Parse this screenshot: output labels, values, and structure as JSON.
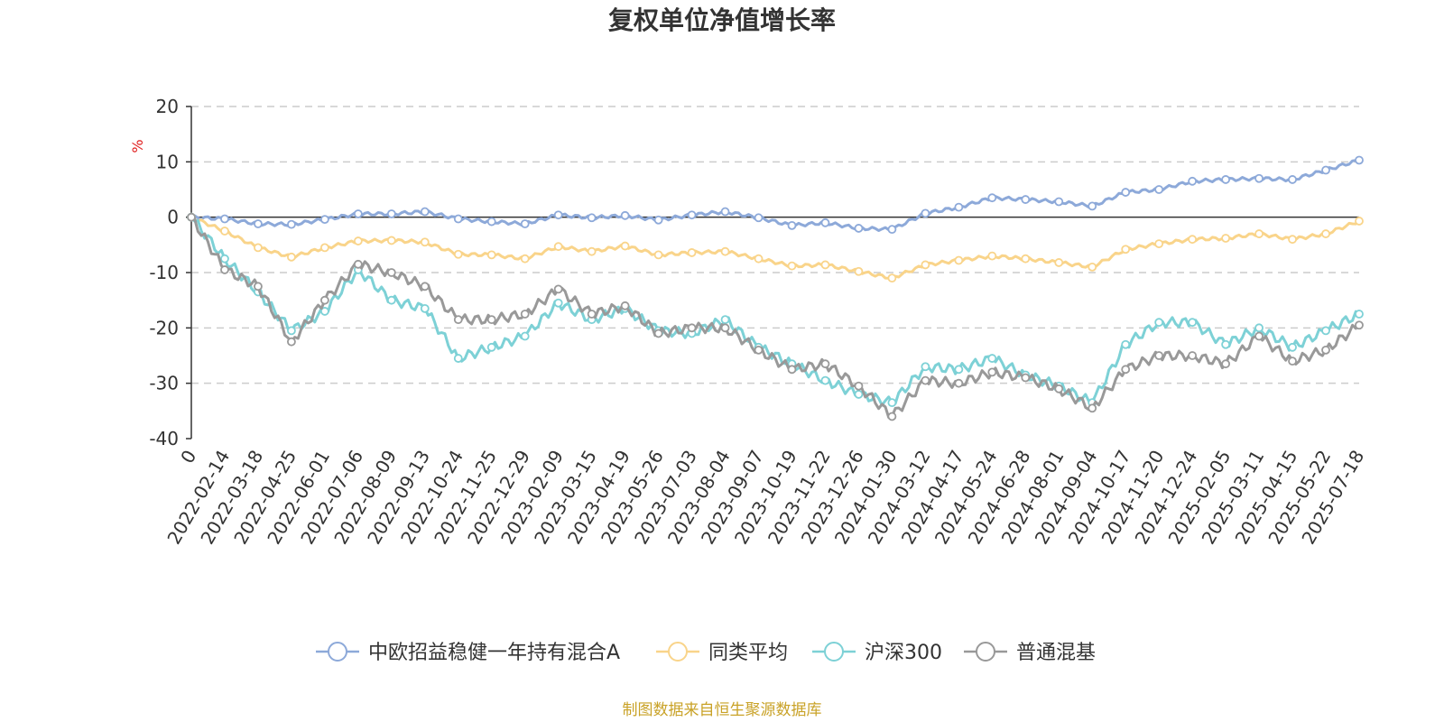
{
  "chart_data": {
    "type": "line",
    "title": "复权单位净值增长率",
    "ylabel": "%",
    "ylim": [
      -40,
      20
    ],
    "yticks": [
      20,
      10,
      0,
      -10,
      -20,
      -30,
      -40
    ],
    "grid": true,
    "legend_position": "bottom",
    "source_note": "制图数据来自恒生聚源数据库",
    "x": [
      "0",
      "2022-02-14",
      "2022-03-18",
      "2022-04-25",
      "2022-06-01",
      "2022-07-06",
      "2022-08-09",
      "2022-09-13",
      "2022-10-24",
      "2022-11-25",
      "2022-12-29",
      "2023-02-09",
      "2023-03-15",
      "2023-04-19",
      "2023-05-26",
      "2023-07-03",
      "2023-08-04",
      "2023-09-07",
      "2023-10-19",
      "2023-11-22",
      "2023-12-26",
      "2024-01-30",
      "2024-03-12",
      "2024-04-17",
      "2024-05-24",
      "2024-06-28",
      "2024-08-01",
      "2024-09-04",
      "2024-10-17",
      "2024-11-20",
      "2024-12-24",
      "2025-02-05",
      "2025-03-11",
      "2025-04-15",
      "2025-05-22",
      "2025-07-18"
    ],
    "series": [
      {
        "name": "中欧招益稳健一年持有混合A",
        "color": "#8da9d9",
        "values": [
          0,
          -0.3,
          -1.2,
          -1.3,
          -0.4,
          0.6,
          0.6,
          1.0,
          -0.3,
          -0.8,
          -1.2,
          0.4,
          -0.1,
          0.3,
          -0.5,
          0.4,
          1.0,
          -0.1,
          -1.5,
          -1.0,
          -2.0,
          -2.2,
          0.7,
          1.8,
          3.5,
          3.2,
          2.8,
          2.0,
          4.5,
          5.0,
          6.5,
          6.8,
          7.0,
          6.8,
          8.5,
          10.3
        ]
      },
      {
        "name": "同类平均",
        "color": "#f9d48a",
        "values": [
          0,
          -2.5,
          -5.5,
          -7.2,
          -5.5,
          -4.3,
          -4.2,
          -4.5,
          -6.7,
          -6.8,
          -7.5,
          -5.3,
          -6.2,
          -5.2,
          -6.8,
          -6.4,
          -6.2,
          -7.5,
          -8.8,
          -8.6,
          -9.8,
          -11.0,
          -8.6,
          -7.8,
          -7.0,
          -7.5,
          -8.2,
          -9.0,
          -5.8,
          -4.8,
          -4.0,
          -3.8,
          -3.0,
          -4.0,
          -3.0,
          -0.7
        ]
      },
      {
        "name": "沪深300",
        "color": "#7dd1d6",
        "values": [
          0,
          -7.5,
          -13.5,
          -20.5,
          -17.0,
          -9.5,
          -15.0,
          -16.5,
          -25.5,
          -23.5,
          -21.5,
          -15.5,
          -18.5,
          -16.5,
          -20.5,
          -21.0,
          -18.5,
          -23.5,
          -26.5,
          -29.5,
          -32.0,
          -33.5,
          -27.0,
          -27.5,
          -25.5,
          -28.5,
          -30.5,
          -33.5,
          -23.0,
          -19.0,
          -19.0,
          -23.0,
          -20.0,
          -23.5,
          -20.5,
          -17.5
        ]
      },
      {
        "name": "普通混基",
        "color": "#999999",
        "values": [
          0,
          -9.5,
          -12.5,
          -22.5,
          -15.0,
          -8.5,
          -10.0,
          -12.5,
          -18.5,
          -18.5,
          -17.5,
          -13.0,
          -17.5,
          -16.0,
          -21.0,
          -20.0,
          -20.0,
          -24.0,
          -27.5,
          -26.5,
          -30.5,
          -36.0,
          -29.5,
          -30.0,
          -28.0,
          -29.0,
          -31.0,
          -34.5,
          -27.5,
          -25.0,
          -25.0,
          -26.5,
          -21.5,
          -26.0,
          -24.0,
          -19.5
        ]
      }
    ]
  }
}
